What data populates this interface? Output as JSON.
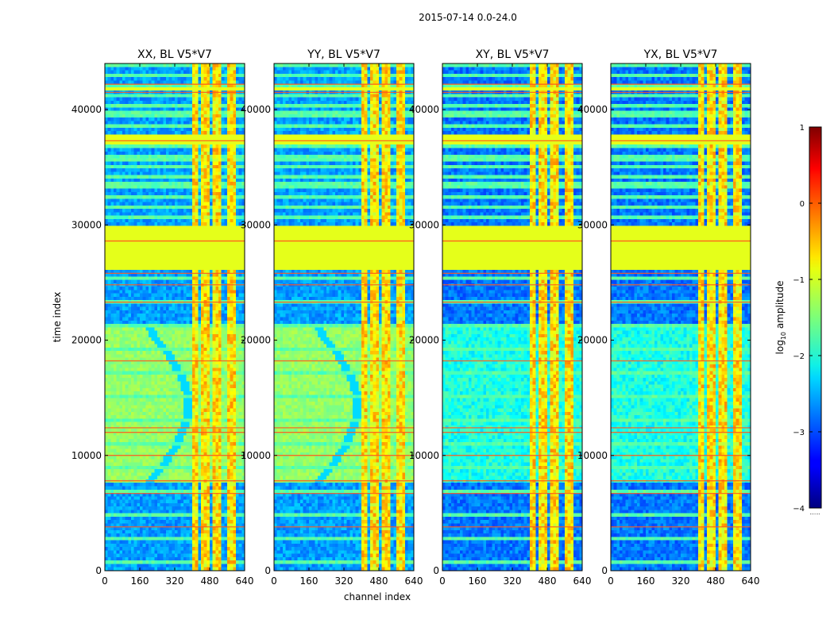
{
  "figure": {
    "suptitle": "2015-07-14 0.0-24.0"
  },
  "colorbar": {
    "label_main": "log",
    "label_sub": "10",
    "label_tail": " amplitude",
    "range": [
      -4,
      1
    ],
    "ticks": [
      1,
      0,
      -1,
      -2,
      -3,
      -4
    ],
    "tick_labels": [
      "1",
      "0",
      "−1",
      "−2",
      "−3",
      "−4"
    ],
    "footnote": "......",
    "colormap": "jet"
  },
  "chart_data": [
    {
      "type": "heatmap",
      "title": "XX, BL V5*V7",
      "xlabel": "",
      "ylabel": "time index",
      "xlim": [
        0,
        640
      ],
      "ylim": [
        0,
        44000
      ],
      "xticks": [
        0,
        160,
        320,
        480,
        640
      ],
      "yticks": [
        0,
        10000,
        20000,
        30000,
        40000
      ],
      "rfi_columns": [
        [
          405,
          420
        ],
        [
          445,
          480
        ],
        [
          500,
          530
        ],
        [
          560,
          595
        ]
      ],
      "flagged_rows": [
        [
          26000,
          29800
        ],
        [
          37000,
          37800
        ],
        [
          41600,
          41800
        ]
      ],
      "value_scale": "log10 amplitude",
      "background_level": -2.6,
      "diagonal_feature": true
    },
    {
      "type": "heatmap",
      "title": "YY, BL V5*V7",
      "xlabel": "channel index",
      "ylabel": "",
      "xlim": [
        0,
        640
      ],
      "ylim": [
        0,
        44000
      ],
      "xticks": [
        0,
        160,
        320,
        480,
        640
      ],
      "yticks": [
        0,
        10000,
        20000,
        30000,
        40000
      ],
      "rfi_columns": [
        [
          405,
          420
        ],
        [
          445,
          480
        ],
        [
          500,
          530
        ],
        [
          560,
          595
        ]
      ],
      "flagged_rows": [
        [
          26000,
          29800
        ],
        [
          37000,
          37800
        ],
        [
          41600,
          41800
        ]
      ],
      "value_scale": "log10 amplitude",
      "background_level": -2.6,
      "diagonal_feature": true
    },
    {
      "type": "heatmap",
      "title": "XY, BL V5*V7",
      "xlabel": "",
      "ylabel": "",
      "xlim": [
        0,
        640
      ],
      "ylim": [
        0,
        44000
      ],
      "xticks": [
        0,
        160,
        320,
        480,
        640
      ],
      "yticks": [
        0,
        10000,
        20000,
        30000,
        40000
      ],
      "rfi_columns": [
        [
          405,
          420
        ],
        [
          445,
          480
        ],
        [
          500,
          530
        ],
        [
          560,
          595
        ]
      ],
      "flagged_rows": [
        [
          26000,
          29800
        ],
        [
          37000,
          37800
        ],
        [
          41600,
          41800
        ]
      ],
      "value_scale": "log10 amplitude",
      "background_level": -2.8,
      "diagonal_feature": false
    },
    {
      "type": "heatmap",
      "title": "YX, BL V5*V7",
      "xlabel": "",
      "ylabel": "",
      "xlim": [
        0,
        640
      ],
      "ylim": [
        0,
        44000
      ],
      "xticks": [
        0,
        160,
        320,
        480,
        640
      ],
      "yticks": [
        0,
        10000,
        20000,
        30000,
        40000
      ],
      "rfi_columns": [
        [
          405,
          420
        ],
        [
          445,
          480
        ],
        [
          500,
          530
        ],
        [
          560,
          595
        ]
      ],
      "flagged_rows": [
        [
          26000,
          29800
        ],
        [
          37000,
          37800
        ],
        [
          41600,
          41800
        ]
      ],
      "value_scale": "log10 amplitude",
      "background_level": -2.8,
      "diagonal_feature": false
    }
  ]
}
